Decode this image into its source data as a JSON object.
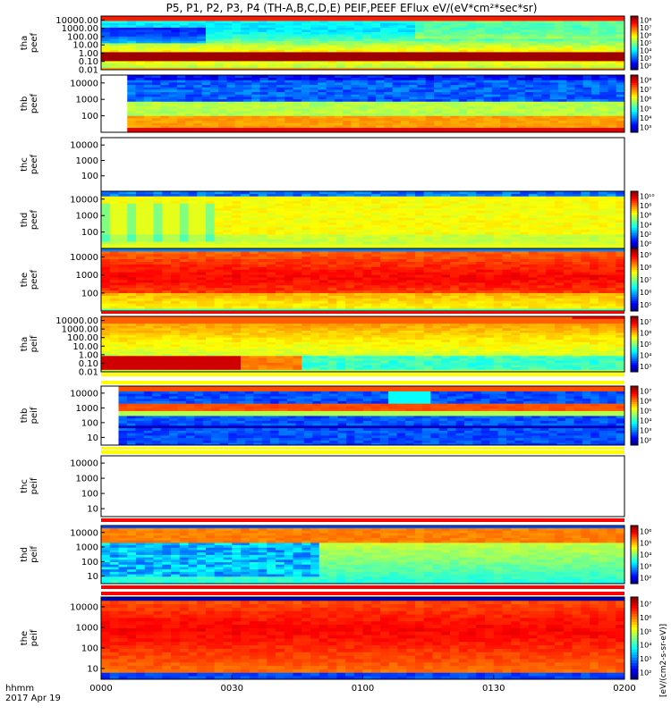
{
  "title": "P5, P1, P2, P3, P4 (TH-A,B,C,D,E) PEIF,PEEF EFlux eV/(eV*cm²*sec*sr)",
  "colors": {
    "fill_band": "#ff0000",
    "separator": "#ffff00"
  },
  "chart_data": {
    "type": "heatmap",
    "time_axis": {
      "ticks": [
        "0000",
        "0030",
        "0100",
        "0130",
        "0200"
      ],
      "row_label": "hhmm",
      "date_label": "2017 Apr 19",
      "range_minutes": [
        0,
        120
      ]
    },
    "colorbar_label": "[eV/(cm2-s-sr-eV)]",
    "panels": [
      {
        "id": "tha-peef",
        "label": [
          "tha",
          "peef"
        ],
        "yticks": [
          "10000.00",
          "1000.00",
          "100.00",
          "10.00",
          "1.00",
          "0.10",
          "0.01"
        ],
        "ylim": [
          0.01,
          30000
        ],
        "yscale": "log",
        "profile": "a",
        "cbar": {
          "ticks": [
            "10⁸",
            "10⁷",
            "10⁶",
            "10⁵",
            "10⁴",
            "10³",
            "10²"
          ],
          "range": [
            2,
            8
          ]
        }
      },
      {
        "id": "thb-peef",
        "label": [
          "thb",
          "peef"
        ],
        "yticks": [
          "10000",
          "1000",
          "100"
        ],
        "ylim": [
          10,
          30000
        ],
        "yscale": "log",
        "profile": "b",
        "start_minute": 6,
        "cbar": {
          "ticks": [
            "10⁸",
            "10⁷",
            "10⁶",
            "10⁵",
            "10⁴",
            "10³"
          ],
          "range": [
            3,
            8
          ]
        }
      },
      {
        "id": "thc-peef",
        "label": [
          "thc",
          "peef"
        ],
        "yticks": [
          "10000",
          "1000",
          "100"
        ],
        "ylim": [
          10,
          30000
        ],
        "yscale": "log",
        "profile": "empty",
        "cbar": null
      },
      {
        "id": "thd-peef",
        "label": [
          "thd",
          "peef"
        ],
        "yticks": [
          "10000",
          "1000",
          "100"
        ],
        "ylim": [
          10,
          30000
        ],
        "yscale": "log",
        "profile": "d",
        "cbar": {
          "ticks": [
            "10¹⁰",
            "10⁸",
            "10⁶",
            "10⁴",
            "10²",
            "10⁰"
          ],
          "range": [
            0,
            10
          ]
        }
      },
      {
        "id": "the-peef",
        "label": [
          "the",
          "peef"
        ],
        "yticks": [
          "10000",
          "1000",
          "100"
        ],
        "ylim": [
          10,
          30000
        ],
        "yscale": "log",
        "profile": "e",
        "cbar": {
          "ticks": [
            "10⁹",
            "10⁸",
            "10⁷",
            "10⁶",
            "10⁵"
          ],
          "range": [
            5,
            9
          ]
        }
      },
      {
        "id": "tha-peif",
        "label": [
          "tha",
          "peif"
        ],
        "yticks": [
          "10000.00",
          "1000.00",
          "100.00",
          "10.00",
          "1.00",
          "0.10",
          "0.01"
        ],
        "ylim": [
          0.01,
          30000
        ],
        "yscale": "log",
        "profile": "ai",
        "cbar": {
          "ticks": [
            "10⁷",
            "10⁶",
            "10⁵",
            "10⁴",
            "10³"
          ],
          "range": [
            3,
            7
          ]
        }
      },
      {
        "id": "thb-peif",
        "label": [
          "thb",
          "peif"
        ],
        "yticks": [
          "10000",
          "1000",
          "100",
          "10"
        ],
        "ylim": [
          3,
          30000
        ],
        "yscale": "log",
        "profile": "bi",
        "start_minute": 4,
        "cbar": {
          "ticks": [
            "10⁷",
            "10⁶",
            "10⁵",
            "10⁴",
            "10³",
            "10²"
          ],
          "range": [
            2,
            7
          ]
        }
      },
      {
        "id": "thc-peif",
        "label": [
          "thc",
          "peif"
        ],
        "yticks": [
          "10000",
          "1000",
          "100",
          "10"
        ],
        "ylim": [
          3,
          30000
        ],
        "yscale": "log",
        "profile": "empty",
        "cbar": null
      },
      {
        "id": "thd-peif",
        "label": [
          "thd",
          "peif"
        ],
        "yticks": [
          "10000",
          "1000",
          "100",
          "10"
        ],
        "ylim": [
          3,
          30000
        ],
        "yscale": "log",
        "profile": "di",
        "cbar": {
          "ticks": [
            "10⁶",
            "10⁵",
            "10⁴",
            "10³",
            "10²"
          ],
          "range": [
            2,
            6
          ]
        }
      },
      {
        "id": "the-peif",
        "label": [
          "the",
          "peif"
        ],
        "yticks": [
          "10000",
          "1000",
          "100",
          "10"
        ],
        "ylim": [
          3,
          30000
        ],
        "yscale": "log",
        "profile": "ei",
        "cbar": {
          "ticks": [
            "10⁷",
            "10⁶",
            "10⁵",
            "10⁴",
            "10³",
            "10²"
          ],
          "range": [
            2,
            7
          ]
        }
      }
    ]
  }
}
